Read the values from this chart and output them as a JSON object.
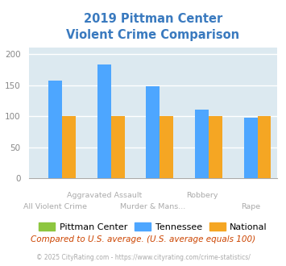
{
  "title_line1": "2019 Pittman Center",
  "title_line2": "Violent Crime Comparison",
  "title_color": "#3a7abf",
  "categories": [
    "All Violent Crime",
    "Aggravated Assault",
    "Murder & Mans...",
    "Robbery",
    "Rape"
  ],
  "pittman_center": [
    0,
    0,
    0,
    0,
    0
  ],
  "tennessee": [
    157,
    183,
    148,
    111,
    98
  ],
  "national": [
    100,
    100,
    100,
    100,
    100
  ],
  "bar_color_pittman": "#8dc63f",
  "bar_color_tennessee": "#4da6ff",
  "bar_color_national": "#f5a623",
  "bg_color": "#dce9f0",
  "ylim": [
    0,
    210
  ],
  "yticks": [
    0,
    50,
    100,
    150,
    200
  ],
  "stagger": [
    1,
    0,
    1,
    0,
    1
  ],
  "footnote1": "Compared to U.S. average. (U.S. average equals 100)",
  "footnote2": "© 2025 CityRating.com - https://www.cityrating.com/crime-statistics/",
  "footnote1_color": "#cc4400",
  "footnote2_color": "#aaaaaa"
}
